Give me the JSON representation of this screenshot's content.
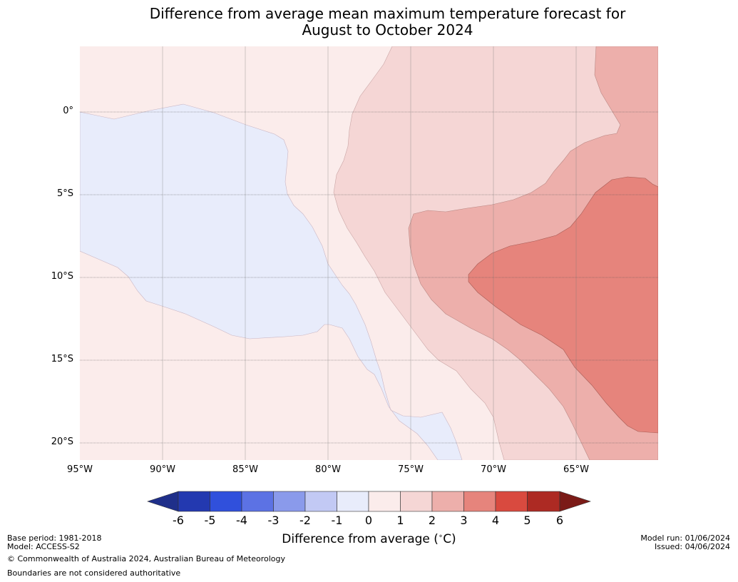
{
  "title_line1": "Difference from average mean maximum temperature forecast for",
  "title_line2": "August to October 2024",
  "lat_labels": [
    "0°",
    "5°S",
    "10°S",
    "15°S",
    "20°S"
  ],
  "lon_labels": [
    "95°W",
    "90°W",
    "85°W",
    "80°W",
    "75°W",
    "70°W",
    "65°W"
  ],
  "colorbar": {
    "title": "Difference from average (",
    "title_unit": "∘",
    "title_end": "C)",
    "ticks": [
      "-6",
      "-5",
      "-4",
      "-3",
      "-2",
      "-1",
      "0",
      "1",
      "2",
      "3",
      "4",
      "5",
      "6"
    ],
    "colors": {
      "lt_-6": "#1f2f8a",
      "-6_-5": "#2339b0",
      "-5_-4": "#3050dc",
      "-4_-3": "#5c72e4",
      "-3_-2": "#8a9aeb",
      "-2_-1": "#c2c9f4",
      "-1_0": "#e8ecfb",
      "0_1": "#fbeceb",
      "1_2": "#f5d6d5",
      "2_3": "#edafab",
      "3_4": "#e6847c",
      "4_5": "#d94a3f",
      "5_6": "#ad2a23",
      "gt_6": "#7b1b17"
    }
  },
  "footer": {
    "base_period": "Base period: 1981-2018",
    "model": "Model: ACCESS-S2",
    "copyright": "© Commonwealth of Australia 2024, Australian Bureau of Meteorology",
    "boundaries": "Boundaries are not considered authoritative",
    "model_run": "Model run: 01/06/2024",
    "issued": "Issued: 04/06/2024"
  }
}
